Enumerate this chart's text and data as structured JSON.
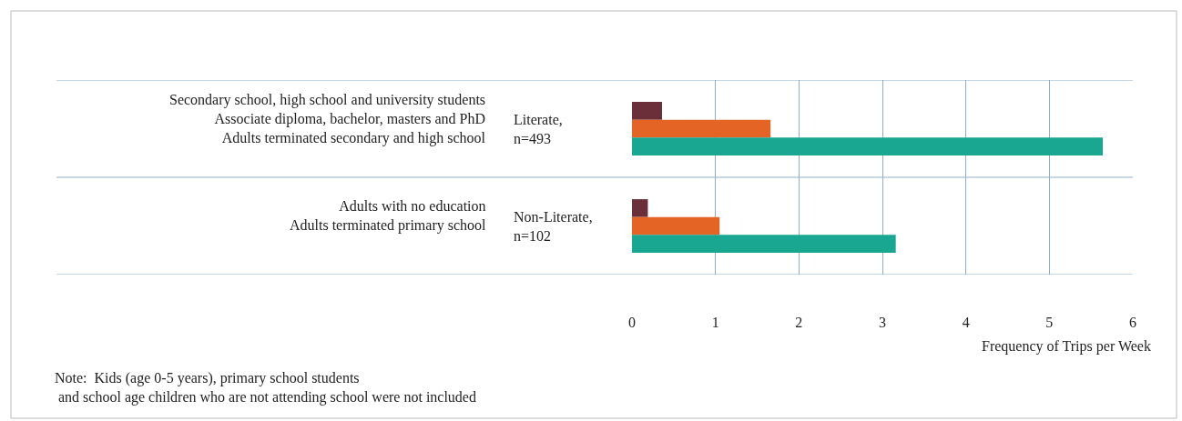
{
  "chart_data": {
    "type": "bar",
    "orientation": "horizontal",
    "categories": [
      "Literate,\nn=493",
      "Non-Literate,\nn=102"
    ],
    "series": [
      {
        "color": "#6b2f3a",
        "values": [
          0.36,
          0.19
        ]
      },
      {
        "color": "#e36425",
        "values": [
          1.66,
          1.05
        ]
      },
      {
        "color": "#1aa792",
        "values": [
          5.64,
          3.16
        ]
      }
    ],
    "xlim": [
      0,
      6
    ],
    "xticks": [
      0,
      1,
      2,
      3,
      4,
      5,
      6
    ],
    "xlabel": "Frequency of Trips per Week",
    "grid": true,
    "annotations": [
      "Secondary school, high school and university students\nAssociate diploma, bachelor, masters and PhD\nAdults terminated secondary and high school",
      "Adults with no education\nAdults terminated primary school",
      "Note:  Kids (age 0-5 years), primary school students\n and school age children who are not attending school were not included"
    ]
  }
}
